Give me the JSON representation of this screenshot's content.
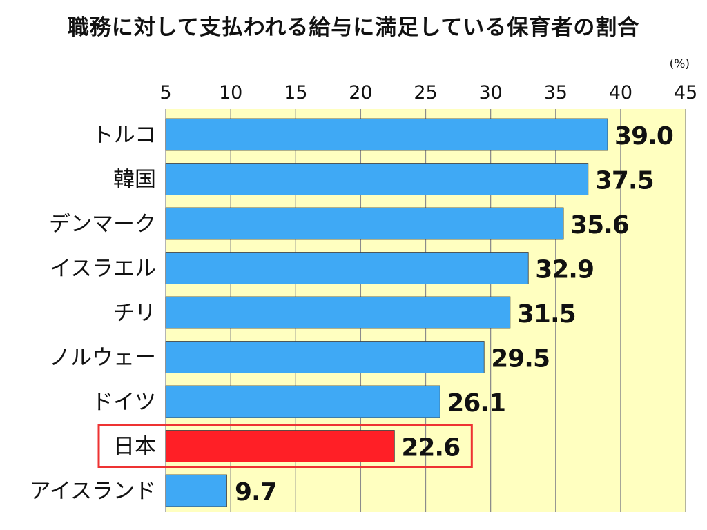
{
  "chart_data": {
    "type": "bar",
    "orientation": "horizontal",
    "title": "職務に対して支払われる給与に満足している保育者の割合",
    "unit": "(%)",
    "categories": [
      "トルコ",
      "韓国",
      "デンマーク",
      "イスラエル",
      "チリ",
      "ノルウェー",
      "ドイツ",
      "日本",
      "アイスランド"
    ],
    "values": [
      39.0,
      37.5,
      35.6,
      32.9,
      31.5,
      29.5,
      26.1,
      22.6,
      9.7
    ],
    "value_labels": [
      "39.0",
      "37.5",
      "35.6",
      "32.9",
      "31.5",
      "29.5",
      "26.1",
      "22.6",
      "9.7"
    ],
    "xlim": [
      5,
      45
    ],
    "xticks": [
      5,
      10,
      15,
      20,
      25,
      30,
      35,
      40,
      45
    ],
    "highlight": "日本",
    "grid": true,
    "colors": {
      "bar": "#3fa9f5",
      "highlight_bar": "#ff1f26",
      "highlight_box": "#ee3333",
      "plot_background": "#ffffc0",
      "grid": "#8c8c8c"
    }
  }
}
